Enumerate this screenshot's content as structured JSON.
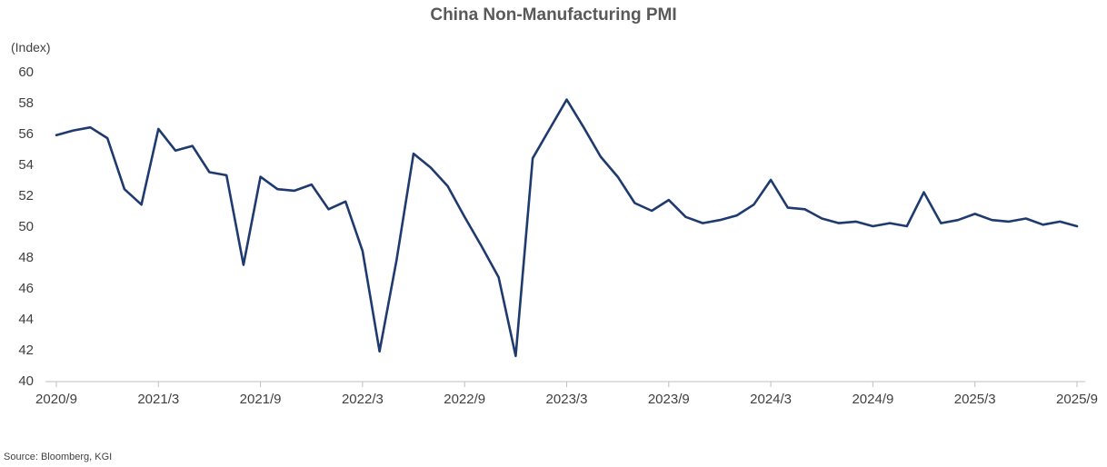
{
  "chart_data": {
    "type": "line",
    "title": "China Non-Manufacturing PMI",
    "ylabel": "(Index)",
    "ylim": [
      40,
      60
    ],
    "yticks": [
      40,
      42,
      44,
      46,
      48,
      50,
      52,
      54,
      56,
      58,
      60
    ],
    "x_tick_labels": [
      "2020/9",
      "2021/3",
      "2021/9",
      "2022/3",
      "2022/9",
      "2023/3",
      "2023/9",
      "2024/3",
      "2024/9",
      "2025/3",
      "2025/9"
    ],
    "x_start": "2020/9",
    "x_end": "2025/9",
    "grid": false,
    "legend": "none",
    "source": "Source: Bloomberg, KGI",
    "series": [
      {
        "color": "#1f3a6e",
        "x": [
          "2020/9",
          "2020/10",
          "2020/11",
          "2020/12",
          "2021/1",
          "2021/2",
          "2021/3",
          "2021/4",
          "2021/5",
          "2021/6",
          "2021/7",
          "2021/8",
          "2021/9",
          "2021/10",
          "2021/11",
          "2021/12",
          "2022/1",
          "2022/2",
          "2022/3",
          "2022/4",
          "2022/5",
          "2022/6",
          "2022/7",
          "2022/8",
          "2022/9",
          "2022/10",
          "2022/11",
          "2022/12",
          "2023/1",
          "2023/2",
          "2023/3",
          "2023/4",
          "2023/5",
          "2023/6",
          "2023/7",
          "2023/8",
          "2023/9",
          "2023/10",
          "2023/11",
          "2023/12",
          "2024/1",
          "2024/2",
          "2024/3",
          "2024/4",
          "2024/5",
          "2024/6",
          "2024/7",
          "2024/8",
          "2024/9",
          "2024/10",
          "2024/11",
          "2024/12",
          "2025/1",
          "2025/2",
          "2025/3",
          "2025/4",
          "2025/5",
          "2025/6",
          "2025/7",
          "2025/8",
          "2025/9"
        ],
        "values": [
          55.9,
          56.2,
          56.4,
          55.7,
          52.4,
          51.4,
          56.3,
          54.9,
          55.2,
          53.5,
          53.3,
          47.5,
          53.2,
          52.4,
          52.3,
          52.7,
          51.1,
          51.6,
          48.4,
          41.9,
          47.8,
          54.7,
          53.8,
          52.6,
          50.6,
          48.7,
          46.7,
          41.6,
          54.4,
          56.3,
          58.2,
          56.4,
          54.5,
          53.2,
          51.5,
          51.0,
          51.7,
          50.6,
          50.2,
          50.4,
          50.7,
          51.4,
          53.0,
          51.2,
          51.1,
          50.5,
          50.2,
          50.3,
          50.0,
          50.2,
          50.0,
          52.2,
          50.2,
          50.4,
          50.8,
          50.4,
          50.3,
          50.5,
          50.1,
          50.3,
          50.0
        ]
      }
    ]
  }
}
